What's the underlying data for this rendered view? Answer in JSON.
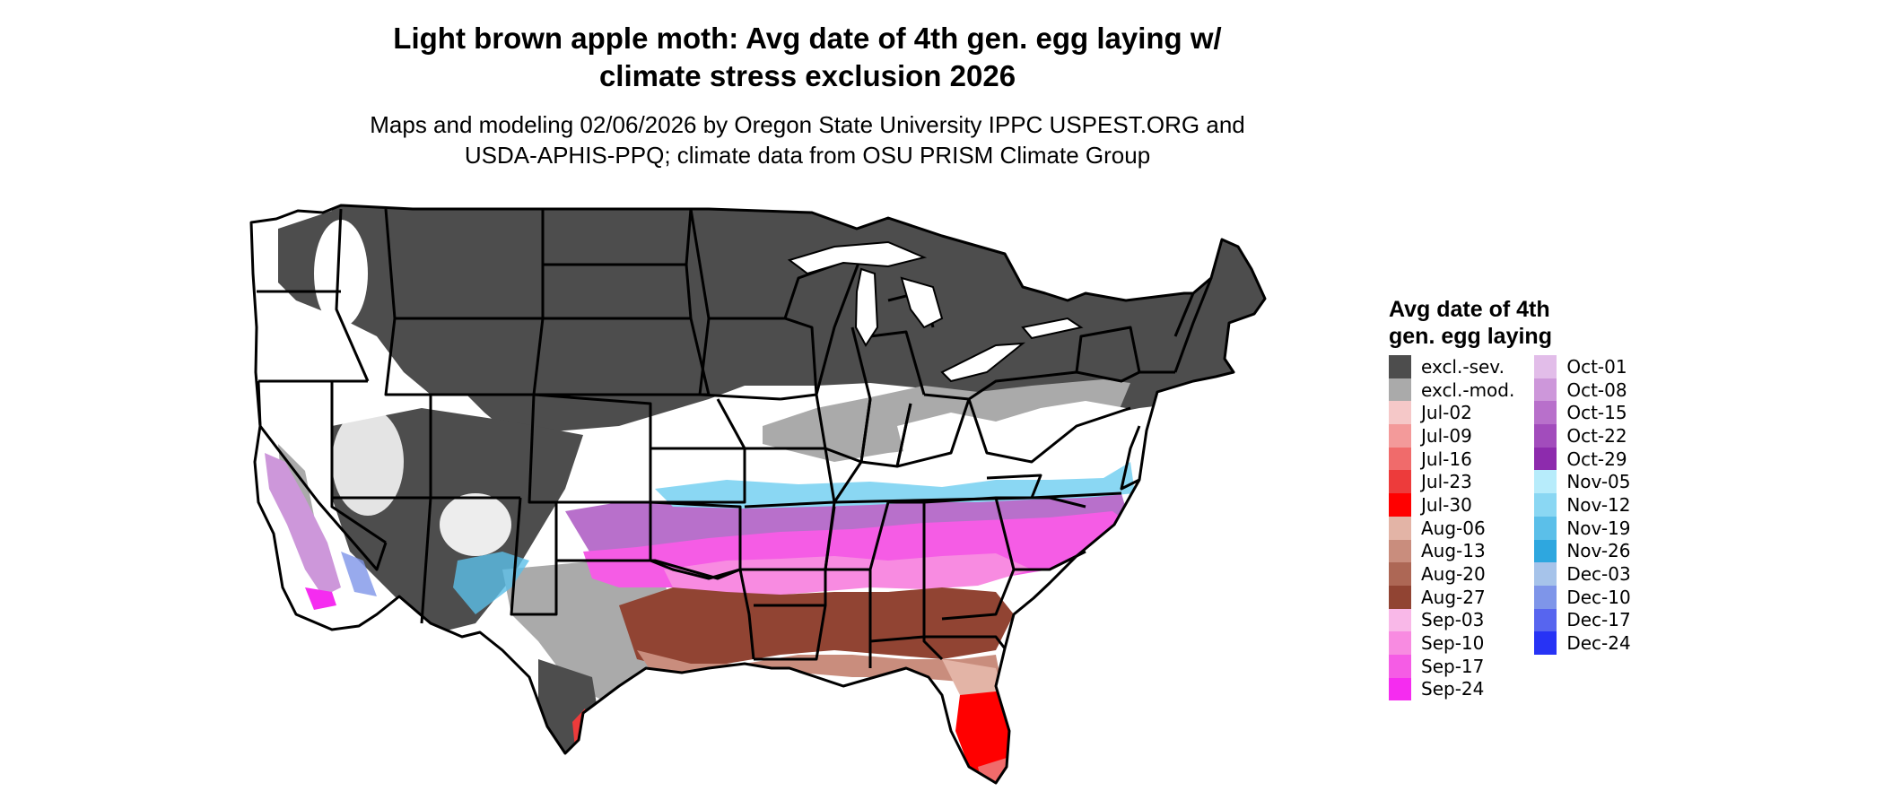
{
  "title_line1": "Light brown apple moth: Avg date of 4th gen. egg laying w/",
  "title_line2": "climate stress exclusion 2026",
  "subtitle_line1": "Maps and modeling 02/06/2026 by Oregon State University IPPC USPEST.ORG and",
  "subtitle_line2": "USDA-APHIS-PPQ; climate data from OSU PRISM Climate Group",
  "legend": {
    "title_line1": "Avg date of 4th",
    "title_line2": "gen. egg laying",
    "items": [
      {
        "label": "excl.-sev.",
        "color": "#4d4d4d"
      },
      {
        "label": "excl.-mod.",
        "color": "#aaaaaa"
      },
      {
        "label": "Jul-02",
        "color": "#f5c8c8"
      },
      {
        "label": "Jul-09",
        "color": "#f39a9a"
      },
      {
        "label": "Jul-16",
        "color": "#f06b6b"
      },
      {
        "label": "Jul-23",
        "color": "#ed3b3b"
      },
      {
        "label": "Jul-30",
        "color": "#ff0000"
      },
      {
        "label": "Aug-06",
        "color": "#e3b4a6"
      },
      {
        "label": "Aug-13",
        "color": "#c98d7d"
      },
      {
        "label": "Aug-20",
        "color": "#ad6755"
      },
      {
        "label": "Aug-27",
        "color": "#914433"
      },
      {
        "label": "Sep-03",
        "color": "#f9b8e8"
      },
      {
        "label": "Sep-10",
        "color": "#f88be1"
      },
      {
        "label": "Sep-17",
        "color": "#f55ce5"
      },
      {
        "label": "Sep-24",
        "color": "#f52cf0"
      },
      {
        "label": "Oct-01",
        "color": "#e2bde9"
      },
      {
        "label": "Oct-08",
        "color": "#cd97da"
      },
      {
        "label": "Oct-15",
        "color": "#b870cb"
      },
      {
        "label": "Oct-22",
        "color": "#a24cbc"
      },
      {
        "label": "Oct-29",
        "color": "#8d2bad"
      },
      {
        "label": "Nov-05",
        "color": "#b7ecfb"
      },
      {
        "label": "Nov-12",
        "color": "#8ad7f3"
      },
      {
        "label": "Nov-19",
        "color": "#5bbfe9"
      },
      {
        "label": "Nov-26",
        "color": "#2ea7df"
      },
      {
        "label": "Dec-03",
        "color": "#a6c3ea"
      },
      {
        "label": "Dec-10",
        "color": "#7e95e9"
      },
      {
        "label": "Dec-17",
        "color": "#5765ef"
      },
      {
        "label": "Dec-24",
        "color": "#2733f5"
      }
    ]
  }
}
